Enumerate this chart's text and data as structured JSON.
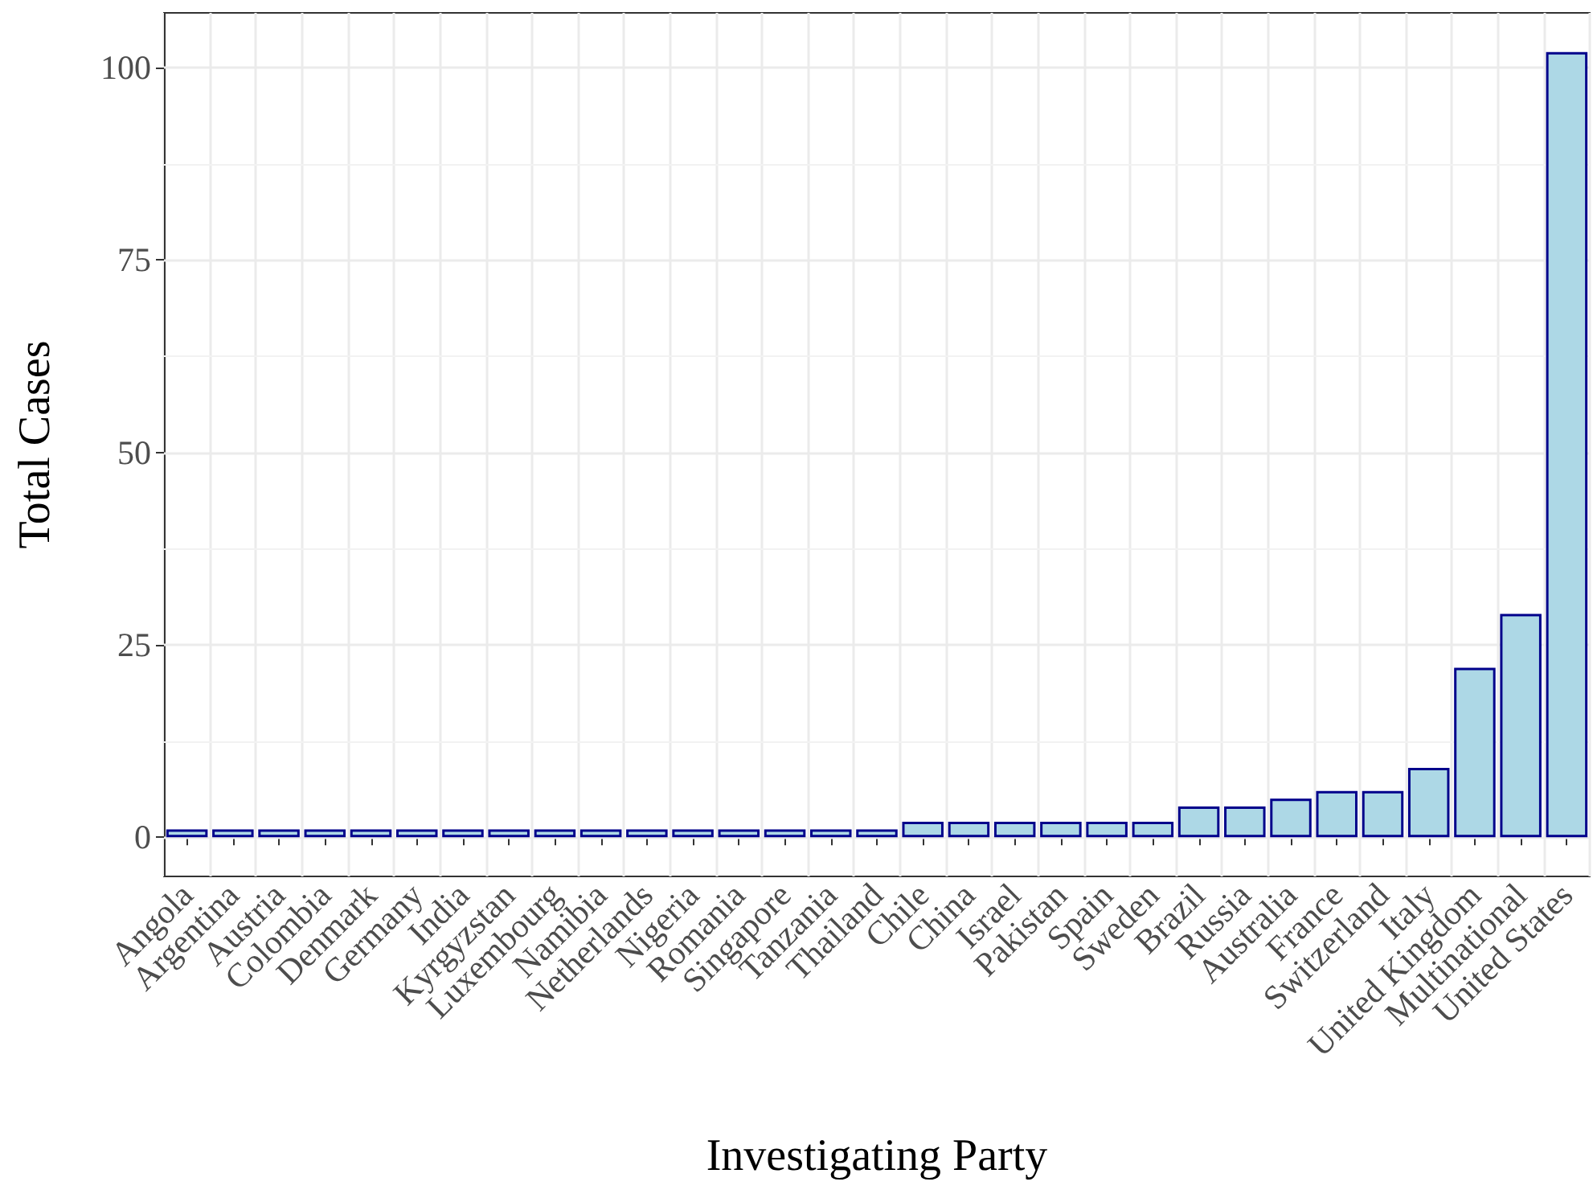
{
  "chart_data": {
    "type": "bar",
    "xlabel": "Investigating Party",
    "ylabel": "Total Cases",
    "categories": [
      "Angola",
      "Argentina",
      "Austria",
      "Colombia",
      "Denmark",
      "Germany",
      "India",
      "Kyrgyzstan",
      "Luxembourg",
      "Namibia",
      "Netherlands",
      "Nigeria",
      "Romania",
      "Singapore",
      "Tanzania",
      "Thailand",
      "Chile",
      "China",
      "Israel",
      "Pakistan",
      "Spain",
      "Sweden",
      "Brazil",
      "Russia",
      "Australia",
      "France",
      "Switzerland",
      "Italy",
      "United Kingdom",
      "Multinational",
      "United States"
    ],
    "values": [
      1,
      1,
      1,
      1,
      1,
      1,
      1,
      1,
      1,
      1,
      1,
      1,
      1,
      1,
      1,
      1,
      2,
      2,
      2,
      2,
      2,
      2,
      4,
      4,
      5,
      6,
      6,
      9,
      22,
      29,
      102
    ],
    "color": "#add8e6",
    "ylim": [
      -5.1,
      107.1
    ],
    "yticks": [
      0,
      25,
      50,
      75,
      100
    ],
    "grid": true
  }
}
